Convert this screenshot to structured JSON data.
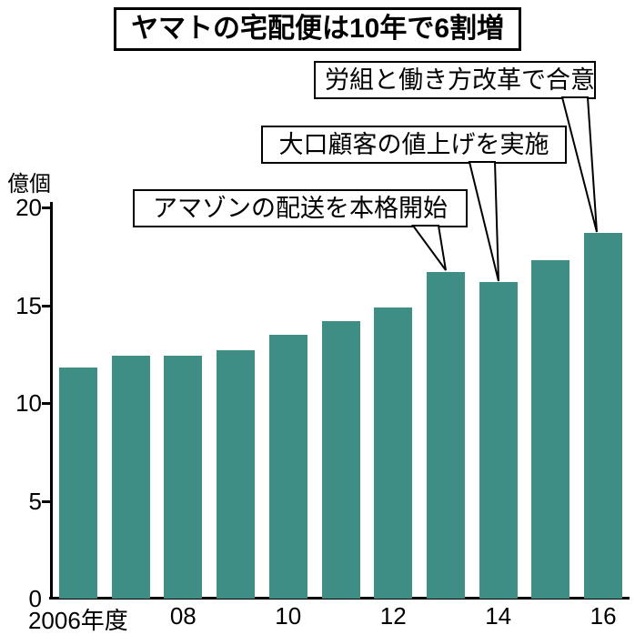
{
  "colors": {
    "bar": "#3e8e86",
    "axis": "#000000",
    "background": "#ffffff"
  },
  "chart_data": {
    "type": "bar",
    "title": "ヤマトの宅配便は10年で6割増",
    "categories": [
      "2006",
      "2007",
      "2008",
      "2009",
      "2010",
      "2011",
      "2012",
      "2013",
      "2014",
      "2015",
      "2016"
    ],
    "values": [
      11.8,
      12.4,
      12.4,
      12.7,
      13.5,
      14.2,
      14.9,
      16.7,
      16.2,
      17.3,
      18.7
    ],
    "xlabel": "",
    "ylabel": "億個",
    "ylim": [
      0,
      20
    ],
    "y_ticks": [
      0,
      5,
      10,
      15,
      20
    ],
    "x_tick_labels": [
      "2006年度",
      "08",
      "10",
      "12",
      "14",
      "16"
    ],
    "grid": false,
    "legend": false,
    "annotations": [
      {
        "text": "労組と働き方改革で合意",
        "target_year": "2016"
      },
      {
        "text": "大口顧客の値上げを実施",
        "target_year": "2014"
      },
      {
        "text": "アマゾンの配送を本格開始",
        "target_year": "2013"
      }
    ]
  }
}
